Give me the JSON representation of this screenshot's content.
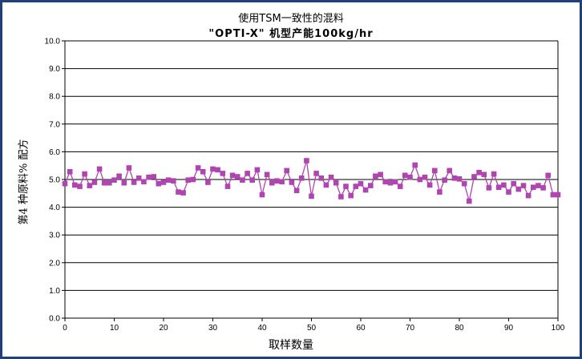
{
  "chart_data": {
    "type": "line",
    "title": "使用TSM一致性的混料",
    "subtitle": "\"OPTI-X\" 机型产能100kg/hr",
    "xlabel": "取样数量",
    "ylabel": "第4 种原料% 配方",
    "xlim": [
      0,
      100
    ],
    "ylim": [
      0,
      10
    ],
    "x_ticks": [
      "0",
      "10",
      "20",
      "30",
      "40",
      "50",
      "60",
      "70",
      "80",
      "90",
      "100"
    ],
    "y_ticks": [
      "0.0",
      "1.0",
      "2.0",
      "3.0",
      "4.0",
      "5.0",
      "6.0",
      "7.0",
      "8.0",
      "9.0",
      "10.0"
    ],
    "grid": "horizontal",
    "series_color": "#b044b0",
    "series": [
      {
        "x": [
          0,
          1,
          2,
          3,
          4,
          5,
          6,
          7,
          8,
          9,
          10,
          11,
          12,
          13,
          14,
          15,
          16,
          17,
          18,
          19,
          20,
          21,
          22,
          23,
          24,
          25,
          26,
          27,
          28,
          29,
          30,
          31,
          32,
          33,
          34,
          35,
          36,
          37,
          38,
          39,
          40,
          41,
          42,
          43,
          44,
          45,
          46,
          47,
          48,
          49,
          50,
          51,
          52,
          53,
          54,
          55,
          56,
          57,
          58,
          59,
          60,
          61,
          62,
          63,
          64,
          65,
          66,
          67,
          68,
          69,
          70,
          71,
          72,
          73,
          74,
          75,
          76,
          77,
          78,
          79,
          80,
          81,
          82,
          83,
          84,
          85,
          86,
          87,
          88,
          89,
          90,
          91,
          92,
          93,
          94,
          95,
          96,
          97,
          98,
          99,
          100
        ],
        "values": [
          4.85,
          5.28,
          4.8,
          4.75,
          5.2,
          4.78,
          4.9,
          5.38,
          4.88,
          4.88,
          4.98,
          5.12,
          4.88,
          5.42,
          4.9,
          5.05,
          4.92,
          5.08,
          5.1,
          4.85,
          4.9,
          4.98,
          4.95,
          4.55,
          4.52,
          4.98,
          5.0,
          5.42,
          5.28,
          4.9,
          5.38,
          5.35,
          5.22,
          4.75,
          5.15,
          5.1,
          4.98,
          5.22,
          4.98,
          5.35,
          4.45,
          5.18,
          4.88,
          4.95,
          4.92,
          5.32,
          4.9,
          4.6,
          5.05,
          5.68,
          4.4,
          5.22,
          5.05,
          4.8,
          5.08,
          4.88,
          4.38,
          4.75,
          4.42,
          4.75,
          4.85,
          4.62,
          4.78,
          5.12,
          5.18,
          4.92,
          4.88,
          4.92,
          4.75,
          5.15,
          5.08,
          5.52,
          5.0,
          5.08,
          4.8,
          5.32,
          4.55,
          4.98,
          5.32,
          5.05,
          5.02,
          4.85,
          4.22,
          5.1,
          5.25,
          5.18,
          4.7,
          5.2,
          4.72,
          4.8,
          4.55,
          4.85,
          4.65,
          4.78,
          4.42,
          4.72,
          4.78,
          4.7,
          5.15,
          4.45,
          4.45
        ]
      }
    ]
  }
}
